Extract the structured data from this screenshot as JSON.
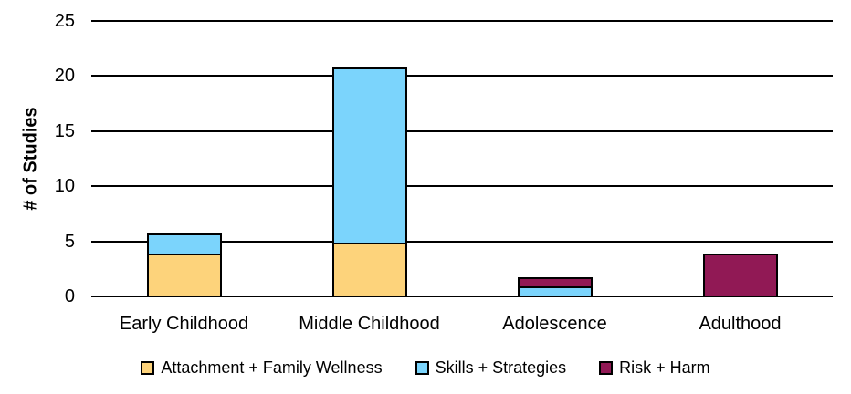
{
  "chart_data": {
    "type": "bar",
    "stacked": true,
    "title": "",
    "xlabel": "",
    "ylabel": "# of Studies",
    "ylim": [
      0,
      25
    ],
    "yticks": [
      0,
      5,
      10,
      15,
      20,
      25
    ],
    "grid": true,
    "legend_position": "bottom",
    "categories": [
      "Early Childhood",
      "Middle Childhood",
      "Adolescence",
      "Adulthood"
    ],
    "series": [
      {
        "name": "Attachment + Family Wellness",
        "color": "#FDD37B",
        "values": [
          4,
          5,
          0,
          0
        ]
      },
      {
        "name": "Skills + Strategies",
        "color": "#7BD4FC",
        "values": [
          2,
          16,
          1,
          0
        ]
      },
      {
        "name": "Risk + Harm",
        "color": "#911955",
        "values": [
          0,
          0,
          1,
          4
        ]
      }
    ],
    "totals": [
      6,
      21,
      2,
      4
    ],
    "colors": {
      "gridline": "#000000",
      "bar_border": "#000000",
      "text": "#000000",
      "background": "#FFFFFF"
    }
  }
}
